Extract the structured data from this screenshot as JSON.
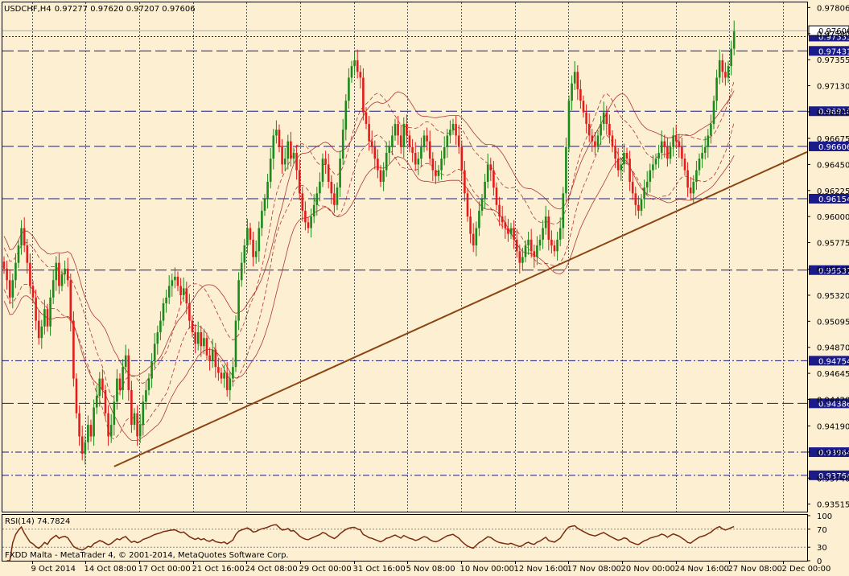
{
  "header": {
    "symbol": "USDCHF,H4",
    "ohlc": "0.97277 0.97620 0.97207 0.97606"
  },
  "rsi_label": "RSI(14) 74.7824",
  "copyright": "FXDD Malta - MetaTrader 4, © 2001-2014, MetaQuotes Software Corp.",
  "colors": {
    "background": "#fdf0d2",
    "bull": "#1b8a1b",
    "bear": "#e41b1b",
    "level_line": "#1a1a8a",
    "trendline": "#8b4513",
    "envelope": "#a01818",
    "grid": "#555555"
  },
  "chart_data": {
    "type": "candlestick",
    "title": "USDCHF,H4",
    "ylim": [
      0.9345,
      0.9785
    ],
    "y_ticks": [
      "0.97806",
      "0.97580",
      "0.97355",
      "0.97130",
      "0.96905",
      "0.96675",
      "0.96450",
      "0.96225",
      "0.96000",
      "0.95775",
      "0.95545",
      "0.95320",
      "0.95095",
      "0.94870",
      "0.94645",
      "0.94420",
      "0.94190",
      "0.93965",
      "0.93740",
      "0.93515"
    ],
    "x_ticks": [
      "9 Oct 2014",
      "14 Oct 08:00",
      "17 Oct 00:00",
      "21 Oct 16:00",
      "24 Oct 08:00",
      "29 Oct 00:00",
      "31 Oct 16:00",
      "5 Nov 08:00",
      "10 Nov 00:00",
      "12 Nov 16:00",
      "17 Nov 08:00",
      "20 Nov 00:00",
      "24 Nov 16:00",
      "27 Nov 08:00",
      "2 Dec 00:00"
    ],
    "current_price": "0.97606",
    "current_price_value": 0.97606,
    "horizontal_levels": [
      {
        "label": "0.97555",
        "value": 0.97555,
        "style": "dotted"
      },
      {
        "label": "0.97431",
        "value": 0.97431,
        "style": "dashed"
      },
      {
        "label": "0.96910",
        "value": 0.9691,
        "style": "dashed"
      },
      {
        "label": "0.96606",
        "value": 0.96606,
        "style": "dashed"
      },
      {
        "label": "0.96154",
        "value": 0.96154,
        "style": "dashed"
      },
      {
        "label": "0.95537",
        "value": 0.95537,
        "style": "dashed"
      },
      {
        "label": "0.94754",
        "value": 0.94754,
        "style": "dashdot"
      },
      {
        "label": "0.94386",
        "value": 0.94386,
        "style": "dashed"
      },
      {
        "label": "0.93964",
        "value": 0.93964,
        "style": "dashdot"
      },
      {
        "label": "0.93764",
        "value": 0.93764,
        "style": "dashdot"
      }
    ],
    "trendline": {
      "from": {
        "bar": 38,
        "price": 0.9384
      },
      "to": {
        "bar": 258,
        "price": 0.9634
      }
    },
    "closes": [
      0.9555,
      0.9545,
      0.953,
      0.9545,
      0.956,
      0.9575,
      0.959,
      0.9575,
      0.956,
      0.954,
      0.953,
      0.951,
      0.9495,
      0.9505,
      0.952,
      0.9505,
      0.953,
      0.9545,
      0.956,
      0.954,
      0.955,
      0.9555,
      0.9545,
      0.951,
      0.946,
      0.943,
      0.941,
      0.9395,
      0.9405,
      0.942,
      0.941,
      0.9435,
      0.9445,
      0.946,
      0.945,
      0.943,
      0.941,
      0.942,
      0.944,
      0.946,
      0.945,
      0.947,
      0.948,
      0.945,
      0.942,
      0.943,
      0.941,
      0.942,
      0.944,
      0.945,
      0.946,
      0.9475,
      0.949,
      0.95,
      0.951,
      0.9525,
      0.953,
      0.954,
      0.9545,
      0.9548,
      0.954,
      0.9532,
      0.9538,
      0.9525,
      0.951,
      0.95,
      0.949,
      0.95,
      0.9488,
      0.9495,
      0.948,
      0.9475,
      0.9485,
      0.947,
      0.9465,
      0.946,
      0.9465,
      0.945,
      0.946,
      0.947,
      0.951,
      0.9545,
      0.956,
      0.9575,
      0.959,
      0.958,
      0.9565,
      0.957,
      0.959,
      0.9605,
      0.9615,
      0.963,
      0.965,
      0.967,
      0.9675,
      0.966,
      0.9645,
      0.965,
      0.9665,
      0.965,
      0.9655,
      0.964,
      0.962,
      0.9605,
      0.9595,
      0.959,
      0.96,
      0.961,
      0.962,
      0.963,
      0.965,
      0.9645,
      0.963,
      0.962,
      0.961,
      0.9625,
      0.965,
      0.9675,
      0.97,
      0.972,
      0.973,
      0.9735,
      0.9725,
      0.972,
      0.969,
      0.968,
      0.9665,
      0.966,
      0.965,
      0.964,
      0.963,
      0.964,
      0.9655,
      0.966,
      0.967,
      0.968,
      0.967,
      0.966,
      0.968,
      0.967,
      0.966,
      0.9655,
      0.9645,
      0.965,
      0.966,
      0.967,
      0.9665,
      0.965,
      0.964,
      0.9635,
      0.964,
      0.965,
      0.966,
      0.967,
      0.9675,
      0.968,
      0.967,
      0.966,
      0.964,
      0.962,
      0.96,
      0.9585,
      0.9575,
      0.959,
      0.9605,
      0.9615,
      0.963,
      0.9645,
      0.964,
      0.9625,
      0.961,
      0.96,
      0.9595,
      0.959,
      0.9585,
      0.959,
      0.958,
      0.957,
      0.956,
      0.9565,
      0.9575,
      0.958,
      0.957,
      0.9565,
      0.9575,
      0.958,
      0.959,
      0.96,
      0.958,
      0.9575,
      0.957,
      0.958,
      0.959,
      0.962,
      0.966,
      0.97,
      0.9715,
      0.9725,
      0.971,
      0.97,
      0.969,
      0.968,
      0.967,
      0.9665,
      0.966,
      0.967,
      0.968,
      0.969,
      0.968,
      0.967,
      0.966,
      0.965,
      0.964,
      0.9645,
      0.9655,
      0.965,
      0.963,
      0.962,
      0.961,
      0.9605,
      0.9615,
      0.9625,
      0.963,
      0.964,
      0.9645,
      0.965,
      0.9655,
      0.9665,
      0.966,
      0.965,
      0.966,
      0.967,
      0.9665,
      0.966,
      0.965,
      0.964,
      0.9625,
      0.962,
      0.963,
      0.964,
      0.965,
      0.9655,
      0.966,
      0.967,
      0.968,
      0.97,
      0.972,
      0.9735,
      0.9725,
      0.972,
      0.973,
      0.9745,
      0.976
    ]
  }
}
